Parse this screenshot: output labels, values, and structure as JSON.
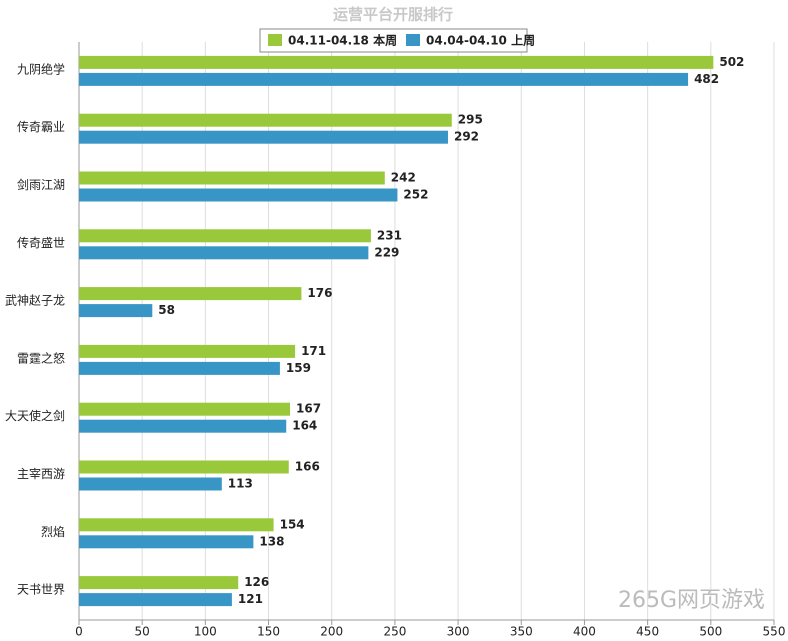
{
  "chart_data": {
    "type": "bar",
    "orientation": "horizontal",
    "title": "运营平台开服排行",
    "categories": [
      "九阴绝学",
      "传奇霸业",
      "剑雨江湖",
      "传奇盛世",
      "武神赵子龙",
      "雷霆之怒",
      "大天使之剑",
      "主宰西游",
      "烈焰",
      "天书世界"
    ],
    "series": [
      {
        "name": "04.11-04.18 本周",
        "color": "#99c83b",
        "values": [
          502,
          295,
          242,
          231,
          176,
          171,
          167,
          166,
          154,
          126
        ]
      },
      {
        "name": "04.04-04.10 上周",
        "color": "#3896c6",
        "values": [
          482,
          292,
          252,
          229,
          58,
          159,
          164,
          113,
          138,
          121
        ]
      }
    ],
    "xlim": [
      0,
      550
    ],
    "xticks": [
      0,
      50,
      100,
      150,
      200,
      250,
      300,
      350,
      400,
      450,
      500,
      550
    ],
    "grid": true,
    "legend": "top",
    "watermark": "265G网页游戏"
  }
}
